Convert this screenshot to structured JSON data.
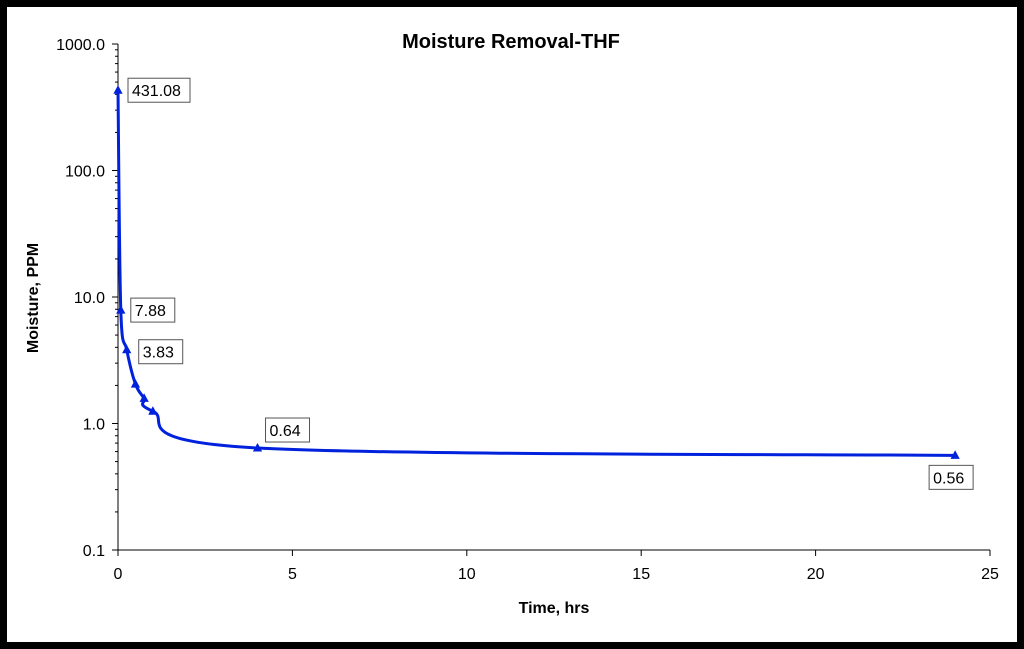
{
  "chart_data": {
    "type": "scatter",
    "title": "Moisture Removal-THF",
    "xlabel": "Time, hrs",
    "ylabel": "Moisture, PPM",
    "xlim": [
      0,
      25
    ],
    "ylim": [
      0.1,
      1000
    ],
    "y_scale": "log",
    "x_ticks": [
      "0",
      "5",
      "10",
      "15",
      "20",
      "25"
    ],
    "y_ticks": [
      "0.1",
      "1.0",
      "10.0",
      "100.0",
      "1000.0"
    ],
    "grid": false,
    "legend": "none",
    "series_color": "#0022dd",
    "series": [
      {
        "x": [
          0.0,
          0.08,
          0.25,
          0.5,
          0.75,
          1.0,
          4.0,
          24.0
        ],
        "y": [
          431.08,
          7.88,
          3.83,
          2.05,
          1.58,
          1.25,
          0.64,
          0.56
        ],
        "labels": [
          "431.08",
          "7.88",
          "3.83",
          null,
          null,
          null,
          "0.64",
          "0.56"
        ]
      }
    ]
  }
}
